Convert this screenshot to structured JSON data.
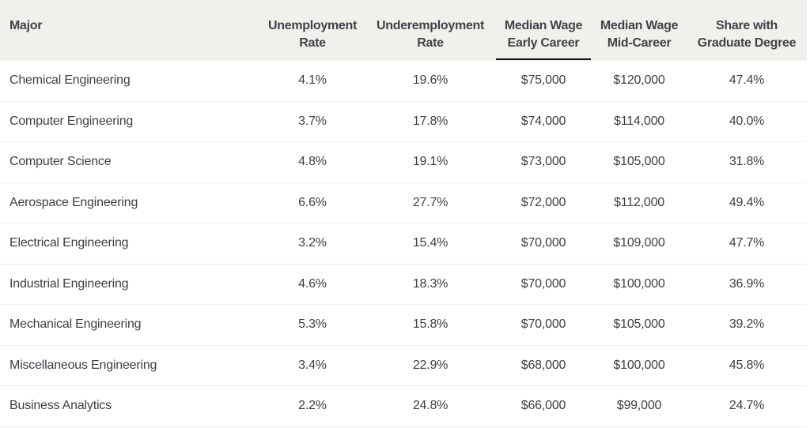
{
  "table": {
    "columns": [
      {
        "label_line1": "Major",
        "label_line2": ""
      },
      {
        "label_line1": "Unemployment",
        "label_line2": "Rate"
      },
      {
        "label_line1": "Underemployment",
        "label_line2": "Rate"
      },
      {
        "label_line1": "Median Wage",
        "label_line2": "Early Career"
      },
      {
        "label_line1": "Median Wage",
        "label_line2": "Mid-Career"
      },
      {
        "label_line1": "Share with",
        "label_line2": "Graduate Degree"
      }
    ],
    "sorted_column": "Median Wage Early Career",
    "rows": [
      [
        "Chemical Engineering",
        "4.1%",
        "19.6%",
        "$75,000",
        "$120,000",
        "47.4%"
      ],
      [
        "Computer Engineering",
        "3.7%",
        "17.8%",
        "$74,000",
        "$114,000",
        "40.0%"
      ],
      [
        "Computer Science",
        "4.8%",
        "19.1%",
        "$73,000",
        "$105,000",
        "31.8%"
      ],
      [
        "Aerospace Engineering",
        "6.6%",
        "27.7%",
        "$72,000",
        "$112,000",
        "49.4%"
      ],
      [
        "Electrical Engineering",
        "3.2%",
        "15.4%",
        "$70,000",
        "$109,000",
        "47.7%"
      ],
      [
        "Industrial Engineering",
        "4.6%",
        "18.3%",
        "$70,000",
        "$100,000",
        "36.9%"
      ],
      [
        "Mechanical Engineering",
        "5.3%",
        "15.8%",
        "$70,000",
        "$105,000",
        "39.2%"
      ],
      [
        "Miscellaneous Engineering",
        "3.4%",
        "22.9%",
        "$68,000",
        "$100,000",
        "45.8%"
      ],
      [
        "Business Analytics",
        "2.2%",
        "24.8%",
        "$66,000",
        "$99,000",
        "24.7%"
      ]
    ]
  },
  "colors": {
    "header_bg": "#f1f0ec",
    "text": "#3c3f44",
    "sort_indicator": "#111111"
  }
}
